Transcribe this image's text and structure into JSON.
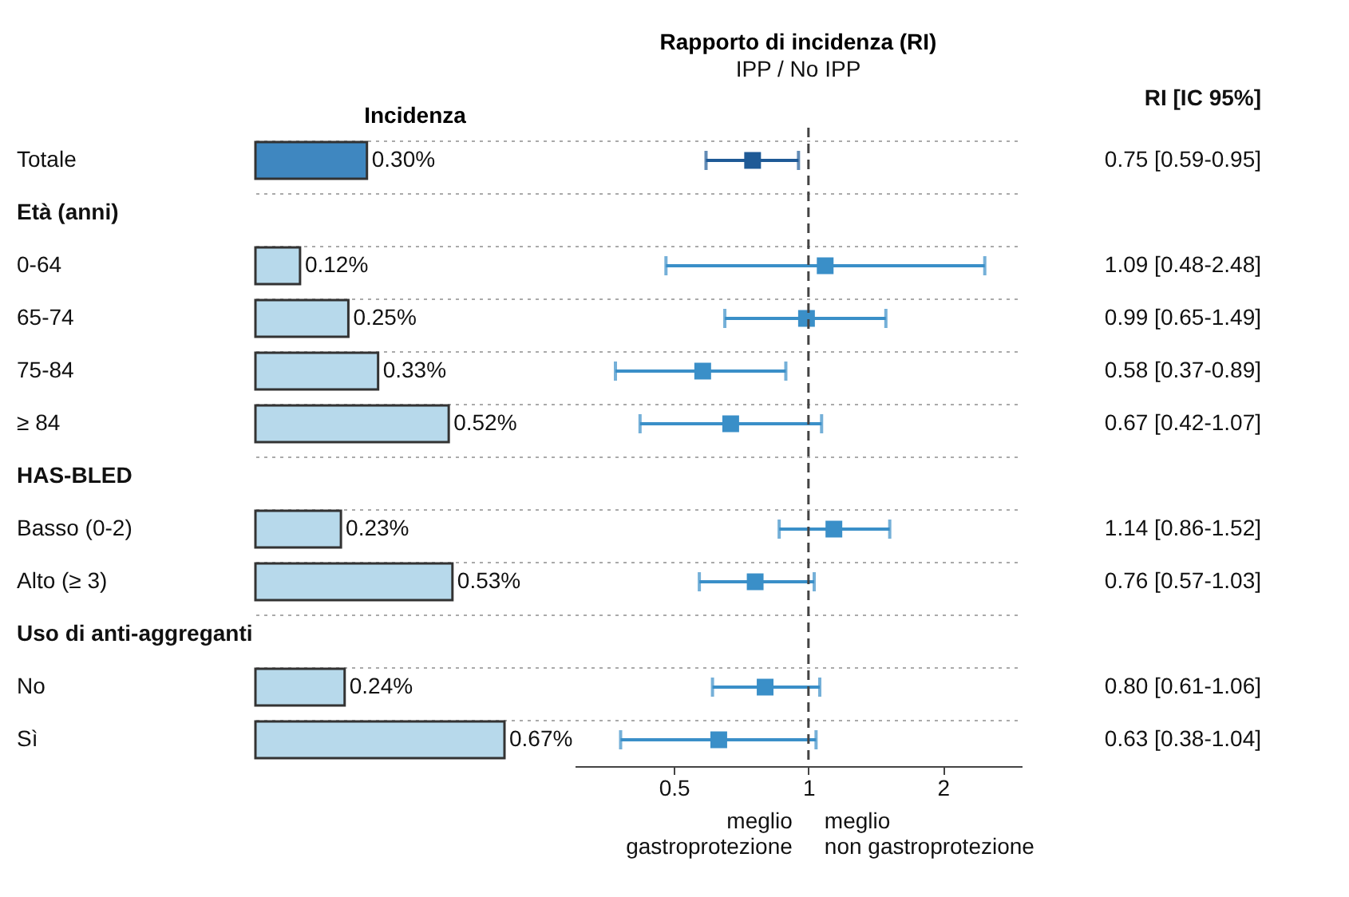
{
  "chart_data": [
    {
      "type": "bar",
      "orientation": "horizontal",
      "title": "Incidenza",
      "categories": [
        "Totale",
        "Età (anni)",
        "0-64",
        "65-74",
        "75-84",
        "≥ 84",
        "HAS-BLED",
        "Basso (0-2)",
        "Alto (≥ 3)",
        "Uso di anti-aggreganti",
        "No",
        "Sì"
      ],
      "values": [
        0.3,
        null,
        0.12,
        0.25,
        0.33,
        0.52,
        null,
        0.23,
        0.53,
        null,
        0.24,
        0.67
      ],
      "colors": [
        "#3f87c0",
        null,
        "#b7d9eb",
        "#b7d9eb",
        "#b7d9eb",
        "#b7d9eb",
        null,
        "#b7d9eb",
        "#b7d9eb",
        null,
        "#b7d9eb",
        "#b7d9eb"
      ],
      "value_labels": [
        "0.30%",
        null,
        "0.12%",
        "0.25%",
        "0.33%",
        "0.52%",
        null,
        "0.23%",
        "0.53%",
        null,
        "0.24%",
        "0.67%"
      ],
      "grid": "y",
      "tick_labels": "y"
    },
    {
      "type": "scatter",
      "orientation": "horizontal",
      "title": "Rapporto di incidenza (RI)",
      "subtitle": "IPP / No IPP",
      "categories": [
        "Totale",
        "Età (anni)",
        "0-64",
        "65-74",
        "75-84",
        "≥ 84",
        "HAS-BLED",
        "Basso (0-2)",
        "Alto (≥ 3)",
        "Uso di anti-aggreganti",
        "No",
        "Sì"
      ],
      "values": [
        0.75,
        null,
        1.09,
        0.99,
        0.58,
        0.67,
        null,
        1.14,
        0.76,
        null,
        0.8,
        0.63
      ],
      "errors": [
        [
          0.59,
          0.95
        ],
        null,
        [
          0.48,
          2.48
        ],
        [
          0.65,
          1.49
        ],
        [
          0.37,
          0.89
        ],
        [
          0.42,
          1.07
        ],
        null,
        [
          0.86,
          1.52
        ],
        [
          0.57,
          1.03
        ],
        null,
        [
          0.61,
          1.06
        ],
        [
          0.38,
          1.04
        ]
      ],
      "colors": [
        "#1f5a96",
        null,
        "#3a8fc8",
        "#3a8fc8",
        "#3a8fc8",
        "#3a8fc8",
        null,
        "#3a8fc8",
        "#3a8fc8",
        null,
        "#3a8fc8",
        "#3a8fc8"
      ],
      "value_labels": [
        "0.75 [0.59-0.95]",
        null,
        "1.09 [0.48-2.48]",
        "0.99 [0.65-1.49]",
        "0.58 [0.37-0.89]",
        "0.67 [0.42-1.07]",
        null,
        "1.14 [0.86-1.52]",
        "0.76 [0.57-1.03]",
        null,
        "0.80 [0.61-1.06]",
        "0.63 [0.38-1.04]"
      ],
      "log": "x",
      "xlim": [
        0.3,
        3
      ],
      "xticks": [
        0.5,
        1,
        2
      ],
      "marker": "square",
      "ref_lines": [
        {
          "axis": "x",
          "value": 1,
          "line_style": "dashed",
          "color": "#444444"
        }
      ],
      "annotations": [
        "RI [IC 95%]",
        "meglio\ngastroprotezione",
        "meglio\nnon gastroprotezione"
      ],
      "grid": "y",
      "tick_labels": "x"
    }
  ]
}
